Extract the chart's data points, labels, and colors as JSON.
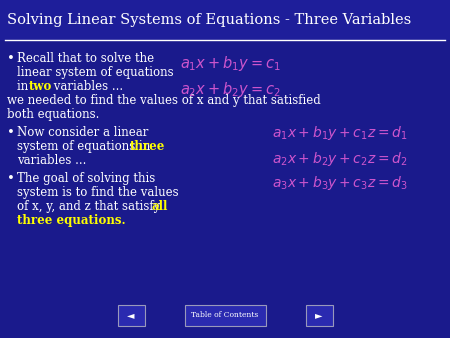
{
  "title": "Solving Linear Systems of Equations - Three Variables",
  "bg_color": "#1a1a8c",
  "title_color": "#ffffff",
  "title_bg_color": "#1a1a8c",
  "body_text_color": "#ffffff",
  "two_color": "#ffff00",
  "three_color": "#ffff00",
  "all_color": "#ffff00",
  "all_three_color": "#ffff00",
  "eq_color": "#cc55cc",
  "nav_bg": "#2a2ab0",
  "nav_border": "#9999bb",
  "toc_label": "Table of Contents",
  "eq1a": "$a_1x + b_1y = c_1$",
  "eq1b": "$a_2x + b_2y = c_2$",
  "eq2a": "$a_1x + b_1y + c_1z = d_1$",
  "eq2b": "$a_2x + b_2y + c_2z = d_2$",
  "eq2c": "$a_3x + b_3y + c_3z = d_3$"
}
